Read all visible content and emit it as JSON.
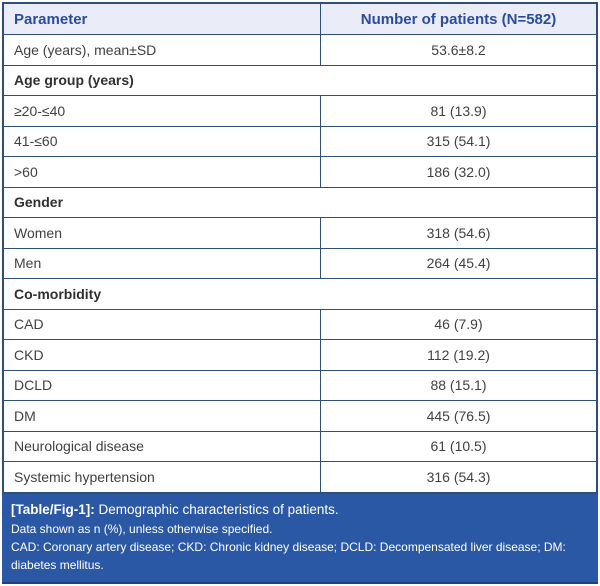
{
  "table": {
    "headers": {
      "parameter": "Parameter",
      "patients": "Number of patients (N=582)"
    },
    "rows": [
      {
        "type": "data",
        "label": "Age (years), mean±SD",
        "value": "53.6±8.2"
      },
      {
        "type": "section",
        "label": "Age group (years)"
      },
      {
        "type": "data",
        "label": "≥20-≤40",
        "value": "81 (13.9)"
      },
      {
        "type": "data",
        "label": "41-≤60",
        "value": "315 (54.1)"
      },
      {
        "type": "data",
        "label": ">60",
        "value": "186 (32.0)"
      },
      {
        "type": "section",
        "label": "Gender"
      },
      {
        "type": "data",
        "label": "Women",
        "value": "318 (54.6)"
      },
      {
        "type": "data",
        "label": "Men",
        "value": "264 (45.4)"
      },
      {
        "type": "section",
        "label": "Co-morbidity"
      },
      {
        "type": "data",
        "label": "CAD",
        "value": "46 (7.9)"
      },
      {
        "type": "data",
        "label": "CKD",
        "value": "112 (19.2)"
      },
      {
        "type": "data",
        "label": "DCLD",
        "value": "88 (15.1)"
      },
      {
        "type": "data",
        "label": "DM",
        "value": "445 (76.5)"
      },
      {
        "type": "data",
        "label": "Neurological disease",
        "value": "61 (10.5)"
      },
      {
        "type": "data",
        "label": "Systemic hypertension",
        "value": "316 (54.3)"
      }
    ]
  },
  "footer": {
    "tag": "[Table/Fig-1]:",
    "caption": " Demographic characteristics of patients.",
    "note_data": "Data shown as n (%), unless otherwise specified.",
    "note_abbrev": "CAD: Coronary artery disease; CKD: Chronic kidney disease; DCLD: Decompensated liver disease; DM: diabetes mellitus."
  },
  "colors": {
    "header_bg": "#eaedf7",
    "header_text": "#2b4c9b",
    "border": "#2d4f78",
    "body_text": "#414141",
    "footer_bg": "#2b58a5",
    "footer_text": "#ffffff"
  }
}
